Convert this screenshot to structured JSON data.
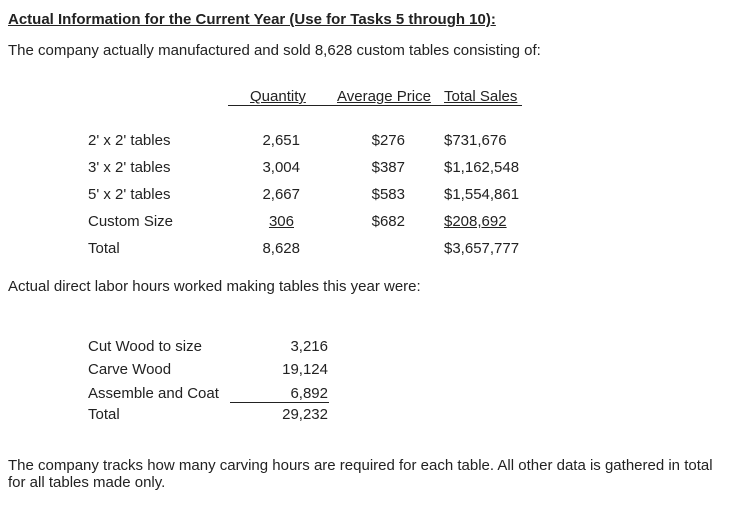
{
  "heading": "Actual Information for the Current Year (Use for Tasks 5 through 10):",
  "intro": "The company actually manufactured and sold 8,628 custom tables consisting of:",
  "sales_table": {
    "headers": {
      "quantity": "Quantity",
      "avg_price": "Average Price",
      "total_sales": "Total Sales"
    },
    "rows": [
      {
        "label": "2' x 2' tables",
        "quantity": "2,651",
        "avg_price": "$276",
        "total_sales": "$731,676"
      },
      {
        "label": "3' x 2' tables",
        "quantity": "3,004",
        "avg_price": "$387",
        "total_sales": "$1,162,548"
      },
      {
        "label": "5' x 2' tables",
        "quantity": "2,667",
        "avg_price": "$583",
        "total_sales": "$1,554,861"
      },
      {
        "label": "Custom Size",
        "quantity": "306",
        "avg_price": "$682",
        "total_sales": "$208,692"
      },
      {
        "label": "Total",
        "quantity": "8,628",
        "avg_price": "",
        "total_sales": "$3,657,777"
      }
    ]
  },
  "labor_intro": "Actual direct labor hours worked making tables this year were:",
  "labor_table": {
    "rows": [
      {
        "label": "Cut Wood to size",
        "hours": "3,216"
      },
      {
        "label": "Carve Wood",
        "hours": "19,124"
      },
      {
        "label": "Assemble and Coat",
        "hours": "6,892"
      },
      {
        "label": "Total",
        "hours": "29,232"
      }
    ]
  },
  "footer_note": "The company tracks how many carving hours are required for each table. All other data is gathered in total for all tables made only."
}
